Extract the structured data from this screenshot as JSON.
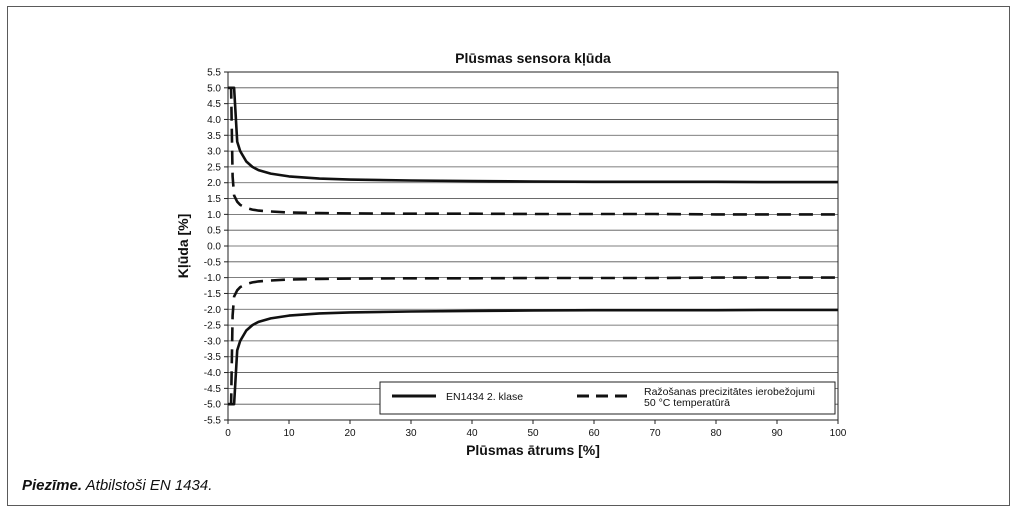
{
  "chart_data": {
    "type": "line",
    "title": "Plūsmas sensora kļūda",
    "xlabel": "Plūsmas ātrums [%]",
    "ylabel": "Kļūda [%]",
    "xlim": [
      0,
      100
    ],
    "ylim": [
      -5.5,
      5.5
    ],
    "x_ticks": [
      0,
      10,
      20,
      30,
      40,
      50,
      60,
      70,
      80,
      90,
      100
    ],
    "y_ticks": [
      "5.5",
      "5.0",
      "4.5",
      "4.0",
      "3.5",
      "3.0",
      "2.5",
      "2.0",
      "1.5",
      "1.0",
      "0.5",
      "0.0",
      "-0.5",
      "-1.0",
      "-1.5",
      "-2.0",
      "-2.5",
      "-3.0",
      "-3.5",
      "-4.0",
      "-4.5",
      "-5.0",
      "-5.5"
    ],
    "grid": "horizontal",
    "legend_position": "bottom-right",
    "series": [
      {
        "name": "EN1434 2. klase",
        "style": "solid",
        "color": "#111111",
        "x": [
          0.5,
          1,
          1.5,
          2,
          3,
          4,
          5,
          7,
          10,
          15,
          20,
          30,
          40,
          50,
          60,
          70,
          80,
          90,
          100
        ],
        "upper": [
          5.0,
          5.0,
          3.3,
          3.0,
          2.67,
          2.5,
          2.4,
          2.29,
          2.2,
          2.13,
          2.1,
          2.07,
          2.05,
          2.04,
          2.03,
          2.03,
          2.03,
          2.02,
          2.02
        ],
        "lower": [
          -5.0,
          -5.0,
          -3.3,
          -3.0,
          -2.67,
          -2.5,
          -2.4,
          -2.29,
          -2.2,
          -2.13,
          -2.1,
          -2.07,
          -2.05,
          -2.04,
          -2.03,
          -2.03,
          -2.03,
          -2.02,
          -2.02
        ]
      },
      {
        "name": "Ražošanas precizitātes ierobežojumi 50 °C temperatūrā",
        "name_lines": [
          "Ražošanas precizitātes ierobežojumi",
          "50 °C temperatūrā"
        ],
        "style": "dashed",
        "color": "#111111",
        "x": [
          0.5,
          0.75,
          1,
          1.5,
          2,
          3,
          4,
          5,
          7,
          10,
          15,
          20,
          30,
          40,
          50,
          60,
          70,
          80,
          90,
          100
        ],
        "upper": [
          5.0,
          2.2,
          1.6,
          1.4,
          1.3,
          1.2,
          1.15,
          1.12,
          1.09,
          1.06,
          1.04,
          1.03,
          1.02,
          1.02,
          1.01,
          1.01,
          1.01,
          1.0,
          1.0,
          1.0
        ],
        "lower": [
          -5.0,
          -2.2,
          -1.6,
          -1.4,
          -1.3,
          -1.2,
          -1.15,
          -1.12,
          -1.09,
          -1.06,
          -1.04,
          -1.03,
          -1.02,
          -1.02,
          -1.01,
          -1.01,
          -1.01,
          -1.0,
          -1.0,
          -1.0
        ]
      }
    ]
  },
  "note": {
    "label": "Piezīme.",
    "text": " Atbilstoši EN 1434."
  }
}
